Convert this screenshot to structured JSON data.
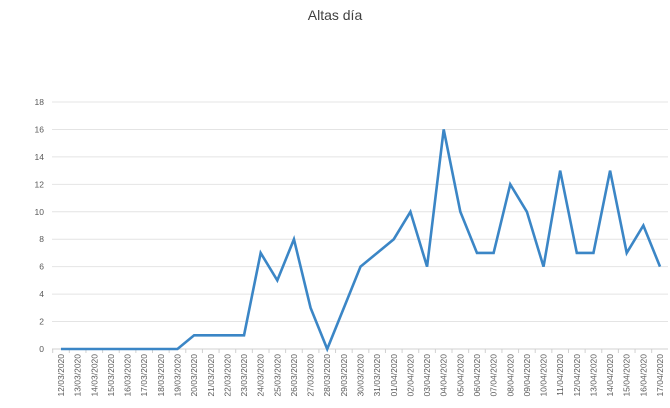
{
  "chart_data": {
    "type": "line",
    "title": "Altas día",
    "xlabel": "",
    "ylabel": "",
    "ylim": [
      0,
      18
    ],
    "yticks": [
      "0",
      "2",
      "4",
      "6",
      "8",
      "10",
      "12",
      "14",
      "16",
      "18"
    ],
    "grid": true,
    "line_color": "#3b86c6",
    "categories": [
      "12/03/2020",
      "13/03/2020",
      "14/03/2020",
      "15/03/2020",
      "16/03/2020",
      "17/03/2020",
      "18/03/2020",
      "19/03/2020",
      "20/03/2020",
      "21/03/2020",
      "22/03/2020",
      "23/03/2020",
      "24/03/2020",
      "25/03/2020",
      "26/03/2020",
      "27/03/2020",
      "28/03/2020",
      "29/03/2020",
      "30/03/2020",
      "31/03/2020",
      "01/04/2020",
      "02/04/2020",
      "03/04/2020",
      "04/04/2020",
      "05/04/2020",
      "06/04/2020",
      "07/04/2020",
      "08/04/2020",
      "09/04/2020",
      "10/04/2020",
      "11/04/2020",
      "12/04/2020",
      "13/04/2020",
      "14/04/2020",
      "15/04/2020",
      "16/04/2020",
      "17/04/2020"
    ],
    "values": [
      0,
      0,
      0,
      0,
      0,
      0,
      0,
      0,
      1,
      1,
      1,
      1,
      7,
      5,
      8,
      3,
      0,
      3,
      6,
      7,
      8,
      10,
      6,
      16,
      10,
      7,
      7,
      12,
      10,
      6,
      13,
      7,
      7,
      13,
      7,
      9,
      6
    ]
  }
}
